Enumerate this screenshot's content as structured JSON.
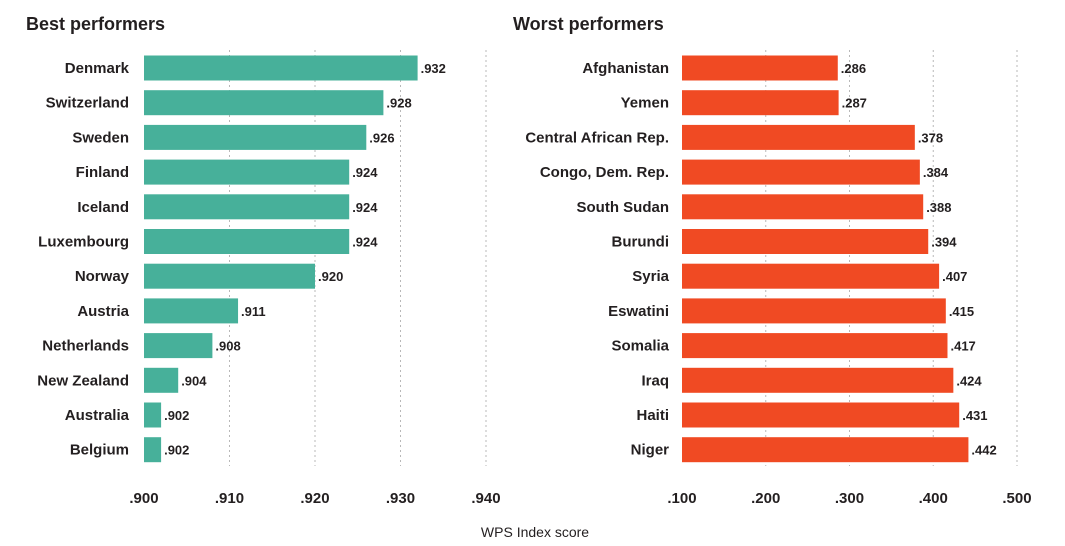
{
  "chart_data": [
    {
      "type": "bar",
      "orientation": "horizontal",
      "title": "Best performers",
      "categories": [
        "Denmark",
        "Switzerland",
        "Sweden",
        "Finland",
        "Iceland",
        "Luxembourg",
        "Norway",
        "Austria",
        "Netherlands",
        "New Zealand",
        "Australia",
        "Belgium"
      ],
      "values": [
        0.932,
        0.928,
        0.926,
        0.924,
        0.924,
        0.924,
        0.92,
        0.911,
        0.908,
        0.904,
        0.902,
        0.902
      ],
      "value_labels": [
        ".932",
        ".928",
        ".926",
        ".924",
        ".924",
        ".924",
        ".920",
        ".911",
        ".908",
        ".904",
        ".902",
        ".902"
      ],
      "xlim": [
        0.9,
        0.94
      ],
      "ticks": [
        0.9,
        0.91,
        0.92,
        0.93,
        0.94
      ],
      "tick_labels": [
        ".900",
        ".910",
        ".920",
        ".930",
        ".940"
      ],
      "color": "#47b09a",
      "grid": true
    },
    {
      "type": "bar",
      "orientation": "horizontal",
      "title": "Worst performers",
      "categories": [
        "Afghanistan",
        "Yemen",
        "Central African Rep.",
        "Congo, Dem. Rep.",
        "South Sudan",
        "Burundi",
        "Syria",
        "Eswatini",
        "Somalia",
        "Iraq",
        "Haiti",
        "Niger"
      ],
      "values": [
        0.286,
        0.287,
        0.378,
        0.384,
        0.388,
        0.394,
        0.407,
        0.415,
        0.417,
        0.424,
        0.431,
        0.442
      ],
      "value_labels": [
        ".286",
        ".287",
        ".378",
        ".384",
        ".388",
        ".394",
        ".407",
        ".415",
        ".417",
        ".424",
        ".431",
        ".442"
      ],
      "xlim": [
        0.1,
        0.5
      ],
      "ticks": [
        0.1,
        0.2,
        0.3,
        0.4,
        0.5
      ],
      "tick_labels": [
        ".100",
        ".200",
        ".300",
        ".400",
        ".500"
      ],
      "color": "#f04a23",
      "grid": true
    }
  ],
  "xlabel": "WPS Index score"
}
